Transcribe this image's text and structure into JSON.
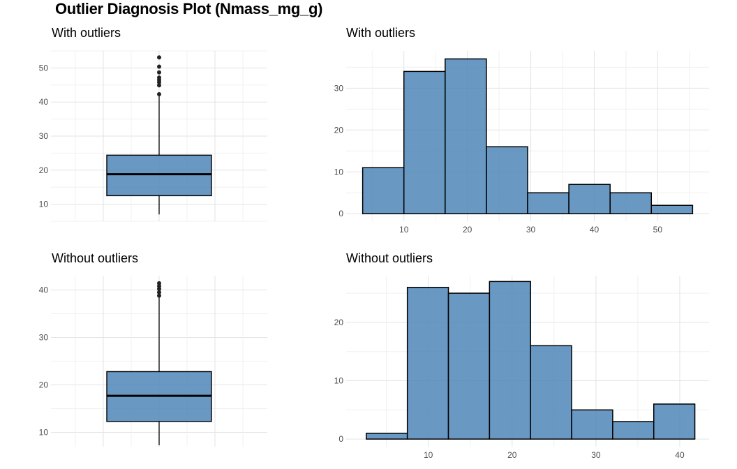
{
  "title": "Outlier Diagnosis Plot (Nmass_mg_g)",
  "colors": {
    "fill": "#4f86b8",
    "outline": "#000000",
    "grid": "#e3e3e3",
    "tick_text": "#4d4d4d"
  },
  "chart_data": [
    {
      "id": "box-with",
      "type": "box",
      "title": "With outliers",
      "ylim": [
        5,
        55
      ],
      "yticks": [
        10,
        20,
        30,
        40,
        50
      ],
      "stats": {
        "min": 7,
        "q1": 12.5,
        "median": 18.8,
        "q3": 24.4,
        "max": 41.8
      },
      "outliers": [
        42.3,
        44.9,
        45.8,
        46.5,
        47.2,
        48.7,
        50.4,
        53.1
      ]
    },
    {
      "id": "hist-with",
      "type": "histogram",
      "title": "With outliers",
      "xlim": [
        0.9,
        58.1
      ],
      "ylim": [
        -1.8,
        38.9
      ],
      "xticks": [
        10,
        20,
        30,
        40,
        50
      ],
      "yticks": [
        0,
        10,
        20,
        30
      ],
      "bins": [
        {
          "x0": 3.5,
          "x1": 10.0,
          "count": 11
        },
        {
          "x0": 10.0,
          "x1": 16.5,
          "count": 34
        },
        {
          "x0": 16.5,
          "x1": 23.0,
          "count": 37
        },
        {
          "x0": 23.0,
          "x1": 29.5,
          "count": 16
        },
        {
          "x0": 29.5,
          "x1": 36.0,
          "count": 5
        },
        {
          "x0": 36.0,
          "x1": 42.5,
          "count": 7
        },
        {
          "x0": 42.5,
          "x1": 49.0,
          "count": 5
        },
        {
          "x0": 49.0,
          "x1": 55.5,
          "count": 2
        }
      ]
    },
    {
      "id": "box-without",
      "type": "box",
      "title": "Without outliers",
      "ylim": [
        7,
        43
      ],
      "yticks": [
        10,
        20,
        30,
        40
      ],
      "stats": {
        "min": 7.3,
        "q1": 12.3,
        "median": 17.7,
        "q3": 22.8,
        "max": 38.8
      },
      "outliers": [
        38.8,
        39.5,
        40.2,
        40.8,
        41.4
      ]
    },
    {
      "id": "hist-without",
      "type": "histogram",
      "title": "Without outliers",
      "xlim": [
        0.2,
        43.5
      ],
      "ylim": [
        -1.3,
        28.0
      ],
      "xticks": [
        10,
        20,
        30,
        40
      ],
      "yticks": [
        0,
        10,
        20
      ],
      "bins": [
        {
          "x0": 2.6,
          "x1": 7.5,
          "count": 1
        },
        {
          "x0": 7.5,
          "x1": 12.4,
          "count": 26
        },
        {
          "x0": 12.4,
          "x1": 17.3,
          "count": 25
        },
        {
          "x0": 17.3,
          "x1": 22.2,
          "count": 27
        },
        {
          "x0": 22.2,
          "x1": 27.1,
          "count": 16
        },
        {
          "x0": 27.1,
          "x1": 32.0,
          "count": 5
        },
        {
          "x0": 32.0,
          "x1": 36.9,
          "count": 3
        },
        {
          "x0": 36.9,
          "x1": 41.8,
          "count": 6
        }
      ]
    }
  ]
}
